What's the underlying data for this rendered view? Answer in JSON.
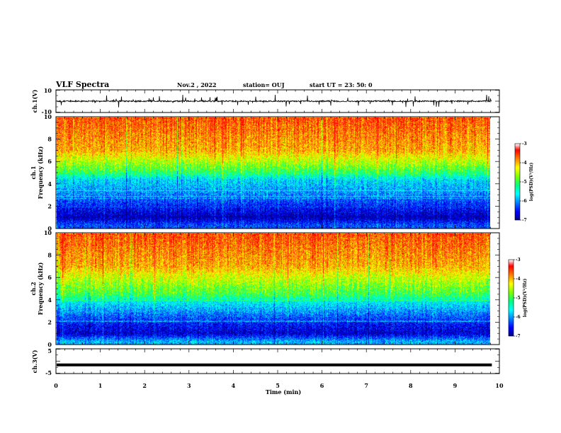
{
  "header": {
    "title": "VLF Spectra",
    "date": "Nov.2 , 2022",
    "station": "station= OUJ",
    "start": "start UT = 23: 50: 0"
  },
  "chart_data": [
    {
      "type": "line",
      "panel": "ch1-waveform",
      "ylabel": "ch.1(V)",
      "yticks": [
        "10",
        "-10"
      ],
      "ylim": [
        -10,
        10
      ],
      "xlim": [
        0,
        10
      ],
      "data_end_min": 9.83,
      "description_values": {
        "baseline": 0.0,
        "typical_amplitude": 1.0,
        "spike_max": 6.0
      }
    },
    {
      "type": "heatmap",
      "panel": "ch1-spectrogram",
      "ylabel": "ch.1 Frequency (kHz)",
      "yticks": [
        "0",
        "2",
        "4",
        "6",
        "8",
        "10"
      ],
      "ylim": [
        0,
        10
      ],
      "xlim": [
        0,
        10
      ],
      "colorbar": {
        "label": "log(PSD)(V²/Hz)",
        "ticks": [
          "-3",
          "-4",
          "-5",
          "-6",
          "-7"
        ],
        "range": [
          -7,
          -3
        ]
      },
      "profile_khz": [
        0.3,
        1.0,
        2.0,
        3.0,
        4.4,
        5.0,
        6.0,
        7.0,
        10.0
      ],
      "profile_logpsd": [
        -6.2,
        -6.8,
        -6.4,
        -6.0,
        -5.6,
        -4.9,
        -4.3,
        -3.7,
        -3.3
      ]
    },
    {
      "type": "heatmap",
      "panel": "ch2-spectrogram",
      "ylabel": "ch.2 Frequency (kHz)",
      "yticks": [
        "0",
        "2",
        "4",
        "6",
        "8",
        "10"
      ],
      "ylim": [
        0,
        10
      ],
      "xlim": [
        0,
        10
      ],
      "colorbar": {
        "label": "log(PSD)(V²/Hz)",
        "ticks": [
          "-3",
          "-4",
          "-5",
          "-6",
          "-7"
        ],
        "range": [
          -7,
          -3
        ]
      },
      "profile_khz": [
        0.3,
        1.0,
        2.0,
        3.0,
        3.8,
        4.5,
        6.0,
        7.0,
        10.0
      ],
      "profile_logpsd": [
        -5.8,
        -6.7,
        -6.4,
        -5.9,
        -5.5,
        -4.8,
        -4.2,
        -3.7,
        -3.3
      ]
    },
    {
      "type": "line",
      "panel": "ch3-waveform",
      "ylabel": "ch.3(V)",
      "yticks": [
        "5",
        "-5"
      ],
      "ylim": [
        -5,
        5
      ],
      "xlim": [
        0,
        10
      ],
      "xlabel": "Time (min)",
      "xticks": [
        "0",
        "1",
        "2",
        "3",
        "4",
        "5",
        "6",
        "7",
        "8",
        "9",
        "10"
      ],
      "values": {
        "level": -1.5
      },
      "data_end_min": 9.83
    }
  ],
  "colors": {
    "frame": "#000000",
    "colormap": [
      "#000080",
      "#0000ff",
      "#0080ff",
      "#00ffff",
      "#00ff80",
      "#80ff00",
      "#ffff00",
      "#ff8000",
      "#ff0000",
      "#ffffff"
    ]
  }
}
